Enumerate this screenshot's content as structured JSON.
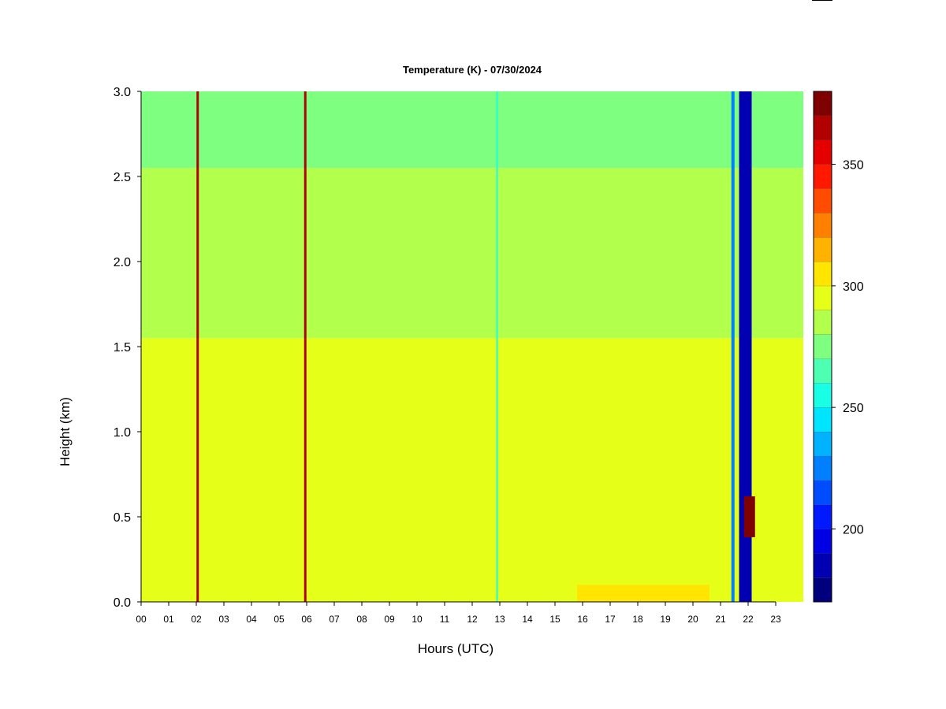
{
  "chart_data": {
    "type": "heatmap",
    "title": "Temperature (K) - 07/30/2024",
    "xlabel": "Hours (UTC)",
    "ylabel": "Height (km)",
    "xlim": [
      0,
      24
    ],
    "ylim": [
      0.0,
      3.0
    ],
    "x_ticks": [
      "00",
      "01",
      "02",
      "03",
      "04",
      "05",
      "06",
      "07",
      "08",
      "09",
      "10",
      "11",
      "12",
      "13",
      "14",
      "15",
      "16",
      "17",
      "18",
      "19",
      "20",
      "21",
      "22",
      "23"
    ],
    "y_ticks": [
      "0.0",
      "0.5",
      "1.0",
      "1.5",
      "2.0",
      "2.5",
      "3.0"
    ],
    "colorbar": {
      "label": "Temperature (K)",
      "range": [
        170,
        380
      ],
      "ticks": [
        "200",
        "250",
        "300",
        "350"
      ],
      "tick_values": [
        200,
        250,
        300,
        350
      ],
      "levels": [
        170,
        180,
        190,
        200,
        210,
        220,
        230,
        240,
        250,
        260,
        270,
        280,
        290,
        300,
        310,
        320,
        330,
        340,
        350,
        360,
        370,
        380
      ],
      "colors": [
        "#00007f",
        "#0000b2",
        "#0000e5",
        "#0019ff",
        "#004cff",
        "#007fff",
        "#00b2ff",
        "#00e5ff",
        "#19ffe5",
        "#4cffb2",
        "#7fff7f",
        "#b2ff4c",
        "#e5ff19",
        "#ffe500",
        "#ffb200",
        "#ff7f00",
        "#ff4c00",
        "#ff1900",
        "#e50000",
        "#b20000",
        "#7f0000"
      ]
    },
    "background_layers": [
      {
        "height_min": 0.0,
        "height_max": 1.55,
        "temperature": 295
      },
      {
        "height_min": 1.55,
        "height_max": 2.55,
        "temperature": 285
      },
      {
        "height_min": 2.55,
        "height_max": 3.0,
        "temperature": 275
      }
    ],
    "warm_surface_layer": {
      "hour_start": 15.8,
      "hour_end": 20.6,
      "height_max": 0.1,
      "temperature": 303
    },
    "anomaly_columns": [
      {
        "hour": 2.05,
        "temperature": 365
      },
      {
        "hour": 5.95,
        "temperature": 365
      },
      {
        "hour": 12.9,
        "temperature": 255
      },
      {
        "hour": 21.45,
        "temperature": 225
      },
      {
        "hour": 21.9,
        "temperature": 185
      },
      {
        "hour": 22.05,
        "height_min": 0.38,
        "height_max": 0.62,
        "temperature": 370
      }
    ]
  }
}
